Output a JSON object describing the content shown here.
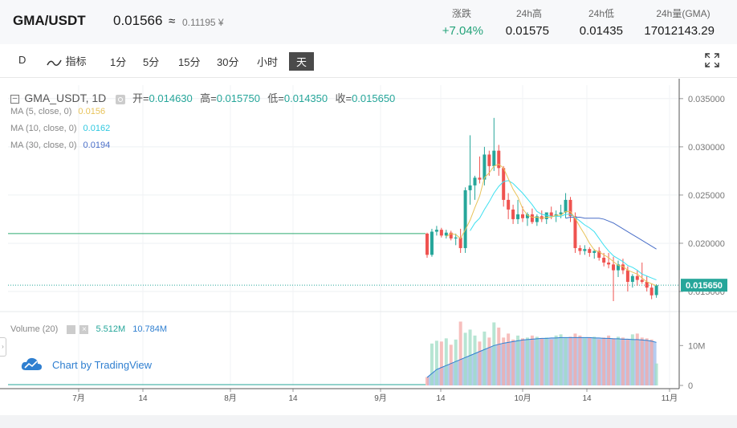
{
  "header": {
    "pair": "GMA/USDT",
    "price": "0.01566",
    "approx_symbol": "≈",
    "cny_price": "0.11195 ¥",
    "stats": [
      {
        "label": "涨跌",
        "value": "+7.04%",
        "color": "green"
      },
      {
        "label": "24h高",
        "value": "0.01575",
        "color": "dark"
      },
      {
        "label": "24h低",
        "value": "0.01435",
        "color": "dark"
      },
      {
        "label": "24h量(GMA)",
        "value": "17012143.29",
        "color": "dark"
      }
    ]
  },
  "toolbar": {
    "chart_type": "D",
    "indicators_label": "指标",
    "intervals": [
      "1分",
      "5分",
      "15分",
      "30分",
      "小时",
      "天"
    ],
    "active_interval": "天"
  },
  "legend": {
    "symbol": "GMA_USDT, 1D",
    "open_label": "开=",
    "open": "0.014630",
    "high_label": "高=",
    "high": "0.015750",
    "low_label": "低=",
    "low": "0.014350",
    "close_label": "收=",
    "close": "0.015650",
    "ma": [
      {
        "label": "MA (5, close, 0)",
        "value": "0.0156",
        "color": "#e8c35a"
      },
      {
        "label": "MA (10, close, 0)",
        "value": "0.0162",
        "color": "#3ee0f0"
      },
      {
        "label": "MA (30, close, 0)",
        "value": "0.0194",
        "color": "#4a6fc8"
      }
    ],
    "volume_label": "Volume (20)",
    "volume_value": "5.512M",
    "volume_ma_value": "10.784M"
  },
  "branding": "Chart by TradingView",
  "colors": {
    "up": "#26a69a",
    "down": "#ef5350",
    "ma5": "#e8c35a",
    "ma10": "#3ee0f0",
    "ma30": "#4a6fc8",
    "green_line": "#2eaa70"
  },
  "chart_data": {
    "type": "candlestick",
    "x_ticks": [
      "7月",
      "14",
      "8月",
      "14",
      "9月",
      "14",
      "10月",
      "14",
      "11月"
    ],
    "y_ticks": [
      "0.035000",
      "0.030000",
      "0.025000",
      "0.020000",
      "0.015000"
    ],
    "ylim": [
      0.0135,
      0.0364
    ],
    "volume_ticks": [
      "10M",
      "0"
    ],
    "last_price_label": "0.015650",
    "last_price": 0.01565,
    "reference_level": 0.021,
    "candles": [
      [
        0.021,
        0.0211,
        0.0185,
        0.0188
      ],
      [
        0.0188,
        0.0215,
        0.0186,
        0.0212
      ],
      [
        0.0212,
        0.0218,
        0.0208,
        0.0214
      ],
      [
        0.0214,
        0.0216,
        0.0206,
        0.0208
      ],
      [
        0.0208,
        0.0214,
        0.0205,
        0.0211
      ],
      [
        0.0211,
        0.0213,
        0.0203,
        0.0205
      ],
      [
        0.0205,
        0.021,
        0.0198,
        0.0206
      ],
      [
        0.0206,
        0.0215,
        0.019,
        0.0195
      ],
      [
        0.0195,
        0.0258,
        0.019,
        0.0255
      ],
      [
        0.0255,
        0.0312,
        0.024,
        0.026
      ],
      [
        0.026,
        0.027,
        0.0245,
        0.0268
      ],
      [
        0.0268,
        0.029,
        0.0262,
        0.0266
      ],
      [
        0.0266,
        0.03,
        0.026,
        0.0292
      ],
      [
        0.0292,
        0.0296,
        0.027,
        0.028
      ],
      [
        0.028,
        0.033,
        0.0275,
        0.0296
      ],
      [
        0.0296,
        0.0302,
        0.027,
        0.0278
      ],
      [
        0.0278,
        0.028,
        0.0238,
        0.0245
      ],
      [
        0.0245,
        0.0252,
        0.0225,
        0.0235
      ],
      [
        0.0235,
        0.024,
        0.022,
        0.0225
      ],
      [
        0.0225,
        0.0245,
        0.022,
        0.023
      ],
      [
        0.023,
        0.0238,
        0.0222,
        0.0226
      ],
      [
        0.0226,
        0.0232,
        0.0218,
        0.023
      ],
      [
        0.023,
        0.0236,
        0.022,
        0.0222
      ],
      [
        0.0222,
        0.023,
        0.0218,
        0.0228
      ],
      [
        0.0228,
        0.0234,
        0.0222,
        0.0225
      ],
      [
        0.0225,
        0.023,
        0.022,
        0.0232
      ],
      [
        0.0232,
        0.0238,
        0.0225,
        0.0228
      ],
      [
        0.0228,
        0.0234,
        0.0222,
        0.023
      ],
      [
        0.023,
        0.024,
        0.0226,
        0.0232
      ],
      [
        0.0232,
        0.0252,
        0.0226,
        0.0245
      ],
      [
        0.0245,
        0.0248,
        0.0222,
        0.0228
      ],
      [
        0.0228,
        0.0232,
        0.019,
        0.0195
      ],
      [
        0.0195,
        0.0198,
        0.0188,
        0.0192
      ],
      [
        0.0192,
        0.0198,
        0.0188,
        0.0194
      ],
      [
        0.0194,
        0.0196,
        0.0186,
        0.019
      ],
      [
        0.019,
        0.0194,
        0.0184,
        0.0192
      ],
      [
        0.0192,
        0.0196,
        0.0182,
        0.0185
      ],
      [
        0.0185,
        0.019,
        0.0176,
        0.018
      ],
      [
        0.018,
        0.019,
        0.0174,
        0.0178
      ],
      [
        0.0178,
        0.0186,
        0.014,
        0.0172
      ],
      [
        0.0172,
        0.0182,
        0.0165,
        0.0178
      ],
      [
        0.0178,
        0.0184,
        0.0168,
        0.0172
      ],
      [
        0.0172,
        0.0176,
        0.015,
        0.016
      ],
      [
        0.016,
        0.0168,
        0.0154,
        0.0166
      ],
      [
        0.0166,
        0.0172,
        0.0156,
        0.0162
      ],
      [
        0.0162,
        0.018,
        0.0158,
        0.016
      ],
      [
        0.016,
        0.0166,
        0.015,
        0.0154
      ],
      [
        0.0154,
        0.0158,
        0.0142,
        0.0146
      ],
      [
        0.01463,
        0.01575,
        0.01435,
        0.01565
      ]
    ],
    "volumes": [
      2.1,
      10.5,
      11.2,
      11.0,
      11.8,
      10.2,
      11.5,
      16.0,
      13.2,
      14.0,
      12.5,
      11.0,
      13.5,
      12.0,
      15.8,
      14.5,
      12.0,
      13.0,
      11.5,
      12.5,
      11.8,
      12.0,
      12.5,
      12.2,
      11.8,
      12.0,
      11.5,
      12.5,
      12.8,
      12.0,
      12.2,
      13.0,
      12.5,
      11.8,
      12.0,
      12.2,
      11.5,
      12.0,
      12.5,
      11.8,
      12.2,
      12.0,
      11.5,
      12.8,
      13.0,
      12.0,
      11.8,
      11.5,
      5.5
    ],
    "volume_ma": [
      2,
      3,
      4,
      4.5,
      5,
      5.5,
      6,
      6.5,
      7,
      7.5,
      8,
      8.5,
      9,
      9.5,
      10,
      10.3,
      10.6,
      10.8,
      11,
      11.2,
      11.4,
      11.5,
      11.6,
      11.7,
      11.8,
      11.8,
      11.9,
      11.9,
      12,
      12,
      12,
      12,
      12,
      12,
      12,
      11.9,
      11.9,
      11.8,
      11.8,
      11.7,
      11.7,
      11.6,
      11.6,
      11.5,
      11.5,
      11.4,
      11.3,
      11.1,
      10.8
    ],
    "ma5": [
      null,
      null,
      null,
      null,
      0.0207,
      0.021,
      0.0209,
      0.0205,
      0.0214,
      0.0224,
      0.0237,
      0.0249,
      0.0268,
      0.0273,
      0.028,
      0.0282,
      0.0278,
      0.0267,
      0.0256,
      0.0248,
      0.0236,
      0.0229,
      0.0227,
      0.0227,
      0.0226,
      0.0227,
      0.0227,
      0.0229,
      0.0229,
      0.0233,
      0.0233,
      0.0226,
      0.0217,
      0.0209,
      0.02,
      0.0193,
      0.0191,
      0.0188,
      0.0185,
      0.0181,
      0.0177,
      0.0176,
      0.0172,
      0.017,
      0.0168,
      0.0164,
      0.016,
      0.0158,
      0.0156
    ],
    "ma10": [
      null,
      null,
      null,
      null,
      null,
      null,
      null,
      null,
      null,
      0.0213,
      0.0221,
      0.0226,
      0.0235,
      0.0243,
      0.0252,
      0.0259,
      0.0264,
      0.0265,
      0.0262,
      0.0257,
      0.0252,
      0.0246,
      0.024,
      0.0233,
      0.023,
      0.0229,
      0.0228,
      0.0228,
      0.0228,
      0.023,
      0.023,
      0.0227,
      0.0223,
      0.0219,
      0.0216,
      0.0212,
      0.0205,
      0.0198,
      0.0192,
      0.0187,
      0.0184,
      0.0181,
      0.0177,
      0.0175,
      0.0172,
      0.0168,
      0.0166,
      0.0164,
      0.0162
    ],
    "ma30": [
      null,
      null,
      null,
      null,
      null,
      null,
      null,
      null,
      null,
      null,
      null,
      null,
      null,
      null,
      null,
      null,
      null,
      null,
      null,
      null,
      null,
      null,
      null,
      null,
      null,
      null,
      null,
      null,
      null,
      0.0226,
      0.0227,
      0.0227,
      0.0227,
      0.0226,
      0.0226,
      0.0226,
      0.0226,
      0.0225,
      0.0223,
      0.0221,
      0.0218,
      0.0215,
      0.0212,
      0.0209,
      0.0206,
      0.0203,
      0.02,
      0.0197,
      0.0194
    ]
  }
}
